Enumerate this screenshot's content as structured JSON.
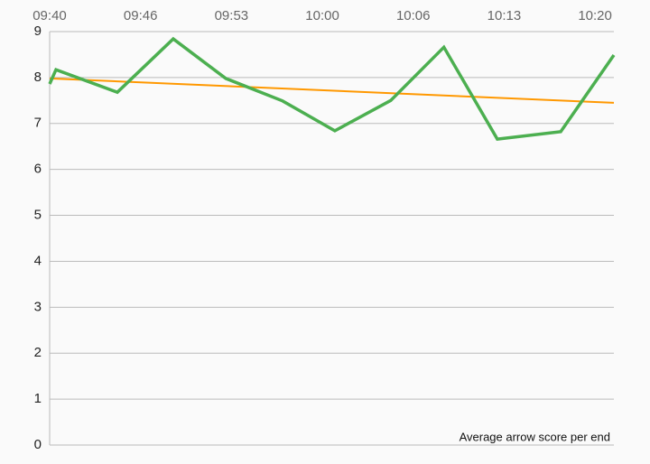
{
  "chart_data": {
    "type": "line",
    "annotation": "Average arrow score per end",
    "series": [
      {
        "color": "#4caf50",
        "x": [
          "09:40:00",
          "09:40:28",
          "09:44:58",
          "09:49:04",
          "09:52:55",
          "09:57:05",
          "10:00:55",
          "10:05:01",
          "10:08:55",
          "10:12:50",
          "10:17:29",
          "10:21:23"
        ],
        "values": [
          7.86,
          8.17,
          7.68,
          8.84,
          7.98,
          7.49,
          6.84,
          7.5,
          8.66,
          6.66,
          6.82,
          8.49
        ]
      },
      {
        "color": "#ff9800",
        "x": [
          "09:40:00",
          "10:21:23"
        ],
        "values": [
          7.98,
          7.45
        ]
      }
    ],
    "xlim": [
      "09:40:00",
      "10:21:23"
    ],
    "xticks": [
      {
        "value": "09:40:00",
        "label": "09:40"
      },
      {
        "value": "09:46:40",
        "label": "09:46"
      },
      {
        "value": "09:53:20",
        "label": "09:53"
      },
      {
        "value": "10:00:00",
        "label": "10:00"
      },
      {
        "value": "10:06:40",
        "label": "10:06"
      },
      {
        "value": "10:13:20",
        "label": "10:13"
      },
      {
        "value": "10:20:00",
        "label": "10:20"
      }
    ],
    "ylim": [
      0,
      9
    ],
    "yticks": [
      0,
      1,
      2,
      3,
      4,
      5,
      6,
      7,
      8,
      9
    ],
    "grid": true
  }
}
